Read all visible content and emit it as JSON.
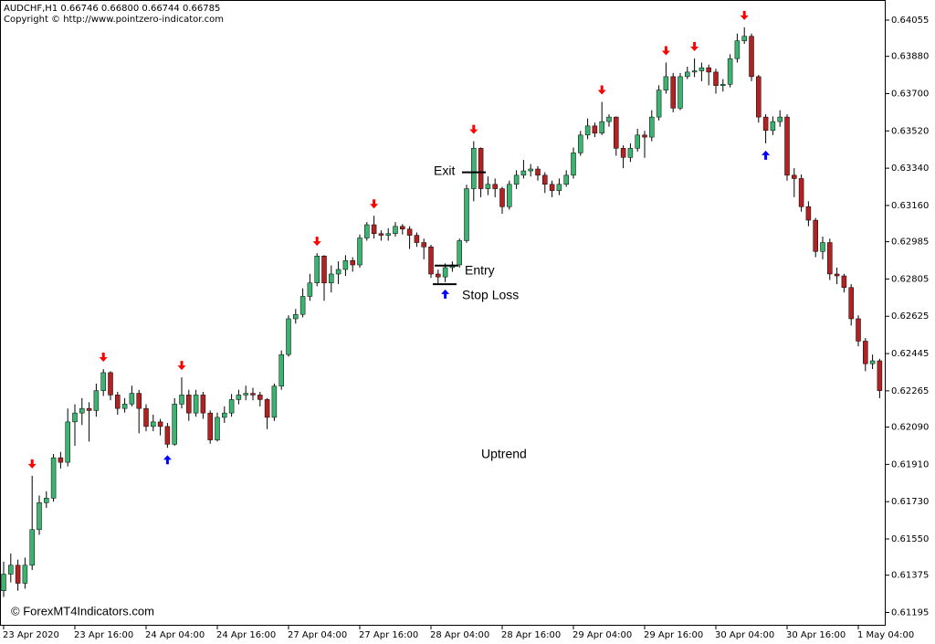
{
  "chart_data": {
    "type": "candlestick",
    "title": "AUDCHF,H1  0.66746 0.66800 0.66744 0.66785",
    "subtitle": "Copyright © http://www.pointzero-indicator.com",
    "watermark": "© ForexMT4Indicators.com",
    "up_color": "#3cb371",
    "down_color": "#b22222",
    "sell_color": "#ff0000",
    "buy_color": "#0000ff",
    "categories": [
      "23 Apr 2020",
      null,
      null,
      null,
      null,
      null,
      null,
      null,
      null,
      null,
      "23 Apr 16:00",
      null,
      null,
      null,
      null,
      null,
      null,
      null,
      null,
      null,
      "24 Apr 04:00",
      null,
      null,
      null,
      null,
      null,
      null,
      null,
      null,
      null,
      "24 Apr 16:00",
      null,
      null,
      null,
      null,
      null,
      null,
      null,
      null,
      null,
      "27 Apr 04:00",
      null,
      null,
      null,
      null,
      null,
      null,
      null,
      null,
      null,
      "27 Apr 16:00",
      null,
      null,
      null,
      null,
      null,
      null,
      null,
      null,
      null,
      "28 Apr 04:00",
      null,
      null,
      null,
      null,
      null,
      null,
      null,
      null,
      null,
      "28 Apr 16:00",
      null,
      null,
      null,
      null,
      null,
      null,
      null,
      null,
      null,
      "29 Apr 04:00",
      null,
      null,
      null,
      null,
      null,
      null,
      null,
      null,
      null,
      "29 Apr 16:00",
      null,
      null,
      null,
      null,
      null,
      null,
      null,
      null,
      null,
      "30 Apr 04:00",
      null,
      null,
      null,
      null,
      null,
      null,
      null,
      null,
      null,
      "30 Apr 16:00",
      null,
      null,
      null,
      null,
      null,
      null,
      null,
      null,
      null,
      "1 May 04:00",
      null,
      null,
      null
    ],
    "open": [
      0.613,
      0.6138,
      0.61423,
      0.61336,
      0.61423,
      0.61595,
      0.61725,
      0.61747,
      0.61942,
      0.6192,
      0.62115,
      0.62158,
      0.6218,
      0.6217,
      0.62266,
      0.62353,
      0.62245,
      0.6218,
      0.62201,
      0.62253,
      0.6218,
      0.62093,
      0.62115,
      0.62093,
      0.62007,
      0.62201,
      0.62245,
      0.62158,
      0.62245,
      0.62158,
      0.62028,
      0.62137,
      0.62158,
      0.62223,
      0.62245,
      0.62253,
      0.62245,
      0.62223,
      0.62137,
      0.62288,
      0.6244,
      0.62613,
      0.62634,
      0.62721,
      0.62786,
      0.62916,
      0.62786,
      0.62829,
      0.62851,
      0.62894,
      0.62873,
      0.63003,
      0.63067,
      0.63024,
      0.63016,
      0.63024,
      0.63059,
      0.63046,
      0.63016,
      0.62981,
      0.6296,
      0.62829,
      0.62815,
      0.6286,
      0.62873,
      0.6299,
      0.63241,
      0.63436,
      0.63241,
      0.63262,
      0.63241,
      0.63154,
      0.63262,
      0.63306,
      0.63327,
      0.63336,
      0.63306,
      0.63262,
      0.63232,
      0.63262,
      0.63306,
      0.63414,
      0.635,
      0.63544,
      0.63509,
      0.63565,
      0.63587,
      0.63436,
      0.63392,
      0.63436,
      0.635,
      0.6349,
      0.63587,
      0.63717,
      0.63782,
      0.6363,
      0.63782,
      0.63804,
      0.6381,
      0.63825,
      0.63804,
      0.63739,
      0.63745,
      0.63869,
      0.63955,
      0.63977,
      0.63782,
      0.63587,
      0.63522,
      0.63565,
      0.63587,
      0.63306,
      0.6329,
      0.63154,
      0.63089,
      0.62938,
      0.62981,
      0.62829,
      0.6282,
      0.62764,
      0.62613,
      0.62505,
      0.62396,
      0.6241
    ],
    "high": [
      0.6144,
      0.6148,
      0.6145,
      0.6146,
      0.61855,
      0.6176,
      0.6178,
      0.6196,
      0.6197,
      0.6218,
      0.622,
      0.6223,
      0.6221,
      0.623,
      0.6237,
      0.6236,
      0.6226,
      0.6223,
      0.6229,
      0.6227,
      0.622,
      0.6215,
      0.6213,
      0.6211,
      0.6223,
      0.6233,
      0.6227,
      0.6227,
      0.6226,
      0.6217,
      0.6216,
      0.6219,
      0.6225,
      0.6227,
      0.6229,
      0.6228,
      0.6226,
      0.6223,
      0.623,
      0.6246,
      0.6263,
      0.6266,
      0.6276,
      0.6283,
      0.6293,
      0.6292,
      0.6287,
      0.6289,
      0.6292,
      0.6291,
      0.6302,
      0.6308,
      0.6311,
      0.6304,
      0.6305,
      0.6308,
      0.6307,
      0.6306,
      0.6303,
      0.63,
      0.6297,
      0.6285,
      0.6288,
      0.6289,
      0.63,
      0.6326,
      0.6347,
      0.6344,
      0.633,
      0.6329,
      0.6325,
      0.6328,
      0.6333,
      0.6338,
      0.6336,
      0.6335,
      0.6332,
      0.6328,
      0.6329,
      0.6333,
      0.6344,
      0.6352,
      0.6358,
      0.6356,
      0.6366,
      0.636,
      0.6359,
      0.6345,
      0.6346,
      0.6353,
      0.6352,
      0.6362,
      0.6374,
      0.6385,
      0.638,
      0.638,
      0.6383,
      0.6387,
      0.6385,
      0.6384,
      0.6382,
      0.6377,
      0.6389,
      0.6399,
      0.6402,
      0.6399,
      0.6379,
      0.636,
      0.6359,
      0.6362,
      0.636,
      0.6334,
      0.6331,
      0.6318,
      0.631,
      0.6301,
      0.63,
      0.6286,
      0.6283,
      0.6278,
      0.6263,
      0.6252,
      0.6244,
      0.6242
    ],
    "low": [
      0.6127,
      0.6134,
      0.613,
      0.6131,
      0.614,
      0.6157,
      0.617,
      0.6173,
      0.6189,
      0.619,
      0.62,
      0.621,
      0.6202,
      0.6214,
      0.6224,
      0.6222,
      0.6215,
      0.6216,
      0.6219,
      0.6206,
      0.6207,
      0.6207,
      0.6205,
      0.6199,
      0.62,
      0.6218,
      0.6212,
      0.6214,
      0.6213,
      0.6201,
      0.6202,
      0.6211,
      0.6214,
      0.622,
      0.6222,
      0.6222,
      0.6219,
      0.6208,
      0.6212,
      0.6227,
      0.6243,
      0.6259,
      0.6262,
      0.627,
      0.6277,
      0.627,
      0.6274,
      0.6278,
      0.6282,
      0.6284,
      0.6286,
      0.6299,
      0.63,
      0.6299,
      0.6299,
      0.6301,
      0.6302,
      0.6295,
      0.6296,
      0.629,
      0.6281,
      0.6278,
      0.6279,
      0.6284,
      0.6286,
      0.6298,
      0.6318,
      0.632,
      0.6321,
      0.632,
      0.6312,
      0.6314,
      0.6324,
      0.6329,
      0.633,
      0.6328,
      0.6322,
      0.632,
      0.6321,
      0.6325,
      0.6329,
      0.634,
      0.6348,
      0.6349,
      0.635,
      0.6354,
      0.634,
      0.6334,
      0.6337,
      0.6342,
      0.6339,
      0.6347,
      0.6357,
      0.637,
      0.6361,
      0.6362,
      0.6377,
      0.6378,
      0.6376,
      0.6374,
      0.637,
      0.6371,
      0.6373,
      0.6385,
      0.6394,
      0.6376,
      0.6356,
      0.6346,
      0.635,
      0.6354,
      0.6328,
      0.632,
      0.6313,
      0.6306,
      0.6291,
      0.629,
      0.628,
      0.6278,
      0.6274,
      0.6258,
      0.6248,
      0.6236,
      0.6237,
      0.6223
    ],
    "close": [
      0.6138,
      0.61423,
      0.61336,
      0.61423,
      0.61595,
      0.61725,
      0.61747,
      0.61942,
      0.6192,
      0.62115,
      0.62158,
      0.6218,
      0.6217,
      0.62266,
      0.62353,
      0.62245,
      0.6218,
      0.62201,
      0.62253,
      0.6218,
      0.62093,
      0.62115,
      0.62093,
      0.62007,
      0.62201,
      0.62245,
      0.62158,
      0.62245,
      0.62158,
      0.62028,
      0.62137,
      0.62158,
      0.62223,
      0.62245,
      0.62253,
      0.62245,
      0.62223,
      0.62137,
      0.62288,
      0.6244,
      0.62613,
      0.62634,
      0.62721,
      0.62786,
      0.62916,
      0.62786,
      0.62829,
      0.62851,
      0.62894,
      0.62873,
      0.63003,
      0.63067,
      0.63024,
      0.63016,
      0.63024,
      0.63059,
      0.63046,
      0.63016,
      0.62981,
      0.6296,
      0.62829,
      0.62815,
      0.6286,
      0.62873,
      0.6299,
      0.63241,
      0.63436,
      0.63241,
      0.63262,
      0.63241,
      0.63154,
      0.63262,
      0.63306,
      0.63327,
      0.63336,
      0.63306,
      0.63262,
      0.63232,
      0.63262,
      0.63306,
      0.63414,
      0.635,
      0.63544,
      0.63509,
      0.63565,
      0.63587,
      0.63436,
      0.63392,
      0.63436,
      0.635,
      0.6349,
      0.63587,
      0.63717,
      0.63782,
      0.6363,
      0.63782,
      0.63804,
      0.6381,
      0.63825,
      0.63804,
      0.63739,
      0.63745,
      0.63869,
      0.63955,
      0.63977,
      0.63782,
      0.63587,
      0.63522,
      0.63565,
      0.63587,
      0.63306,
      0.6329,
      0.63154,
      0.63089,
      0.62938,
      0.62981,
      0.62829,
      0.6282,
      0.62764,
      0.62613,
      0.62505,
      0.62396,
      0.6241,
      0.62266
    ],
    "sell_signals": [
      4,
      14,
      25,
      44,
      52,
      66,
      84,
      93,
      97,
      104
    ],
    "buy_signals": [
      23,
      62,
      107
    ],
    "annotations": [
      {
        "text": "Exit",
        "level": 0.6332
      },
      {
        "text": "Entry",
        "level": 0.6287
      },
      {
        "text": "Stop Loss",
        "level": 0.6278
      },
      {
        "text": "Uptrend"
      }
    ],
    "ylim": [
      0.61131,
      0.64152
    ],
    "yticks": [
      0.64055,
      {
        "value": 0.6388,
        "label": "0.63880"
      },
      {
        "value": 0.637,
        "label": "0.63700"
      },
      {
        "value": 0.6352,
        "label": "0.63520"
      },
      {
        "value": 0.6334,
        "label": "0.63340"
      },
      {
        "value": 0.6316,
        "label": "0.63160"
      },
      0.62985,
      0.62805,
      0.62625,
      0.62445,
      0.62265,
      {
        "value": 0.6209,
        "label": "0.62090"
      },
      {
        "value": 0.6191,
        "label": "0.61910"
      },
      {
        "value": 0.6173,
        "label": "0.61730"
      },
      {
        "value": 0.6155,
        "label": "0.61550"
      },
      0.61375,
      0.61195
    ]
  }
}
